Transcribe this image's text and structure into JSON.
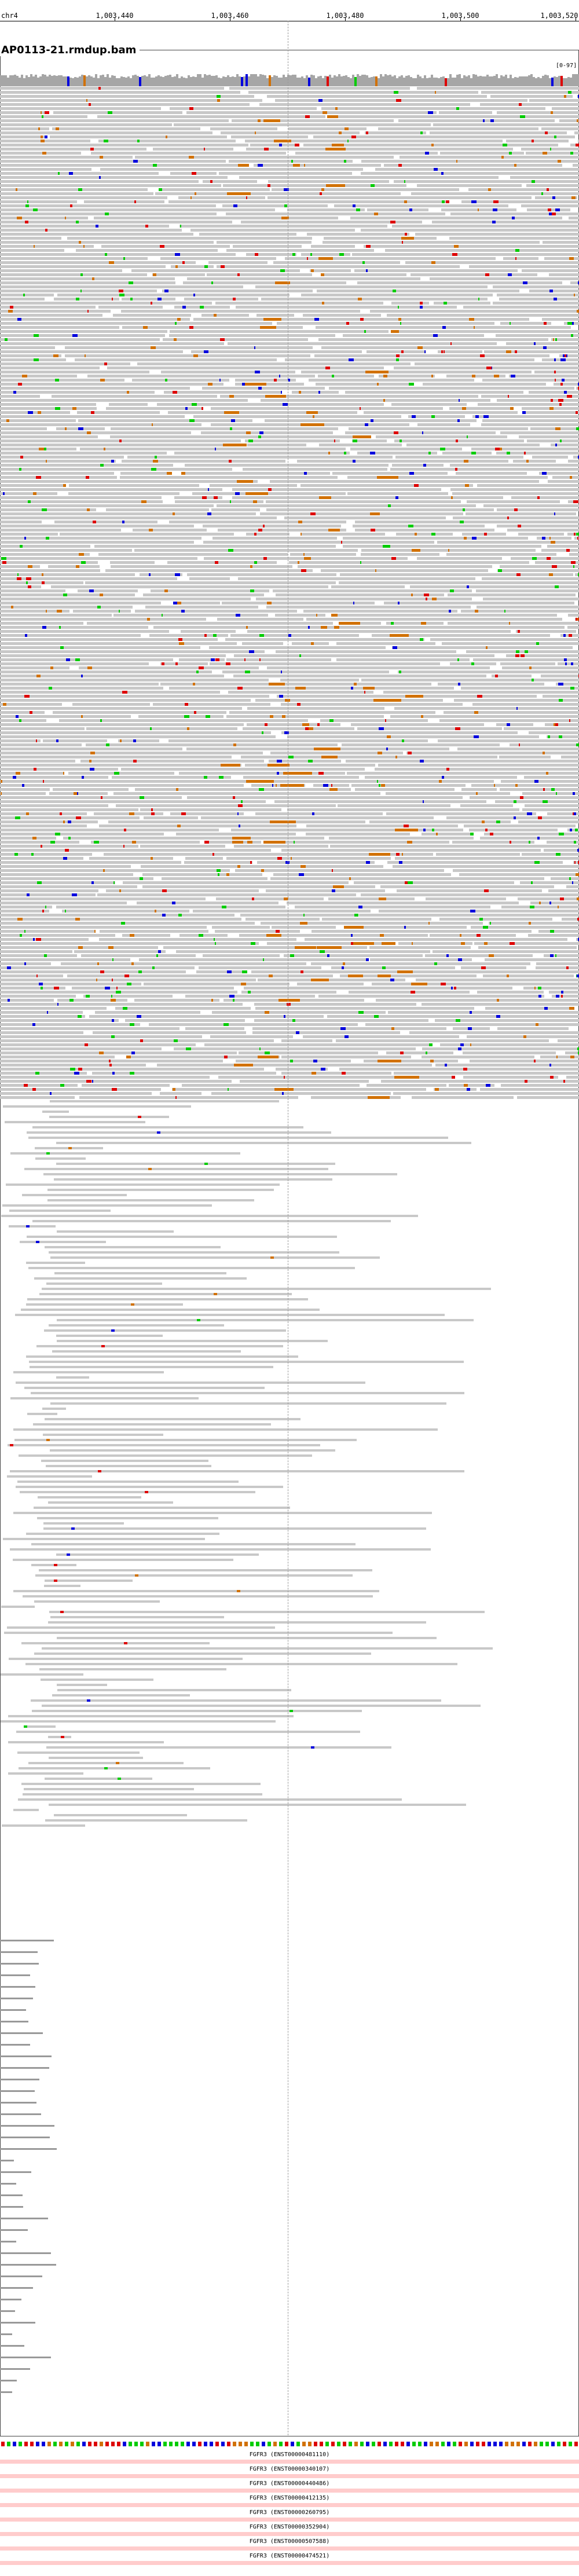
{
  "ruler": {
    "chromosome": "chr4",
    "ticks": [
      "1,003,440",
      "1,003,460",
      "1,003,480",
      "1,003,500",
      "1,003,520"
    ]
  },
  "track": {
    "title": "AP0113-21.rmdup.bam",
    "range": "[0-97]"
  },
  "genes": [
    {
      "label": "FGFR3 (ENST00000481110)"
    },
    {
      "label": "FGFR3 (ENST00000340107)"
    },
    {
      "label": "FGFR3 (ENST00000440486)"
    },
    {
      "label": "FGFR3 (ENST00000412135)"
    },
    {
      "label": "FGFR3 (ENST00000260795)"
    },
    {
      "label": "FGFR3 (ENST00000352904)"
    },
    {
      "label": "FGFR3 (ENST00000507588)"
    },
    {
      "label": "FGFR3 (ENST00000474521)"
    }
  ],
  "colors": {
    "read": "#c8c8c8",
    "mismatch_A": "#00cc00",
    "mismatch_C": "#0000dd",
    "mismatch_G": "#d17105",
    "mismatch_T": "#dd0000",
    "insertion": "#7b2ea6",
    "gene": "#ffcccc"
  }
}
